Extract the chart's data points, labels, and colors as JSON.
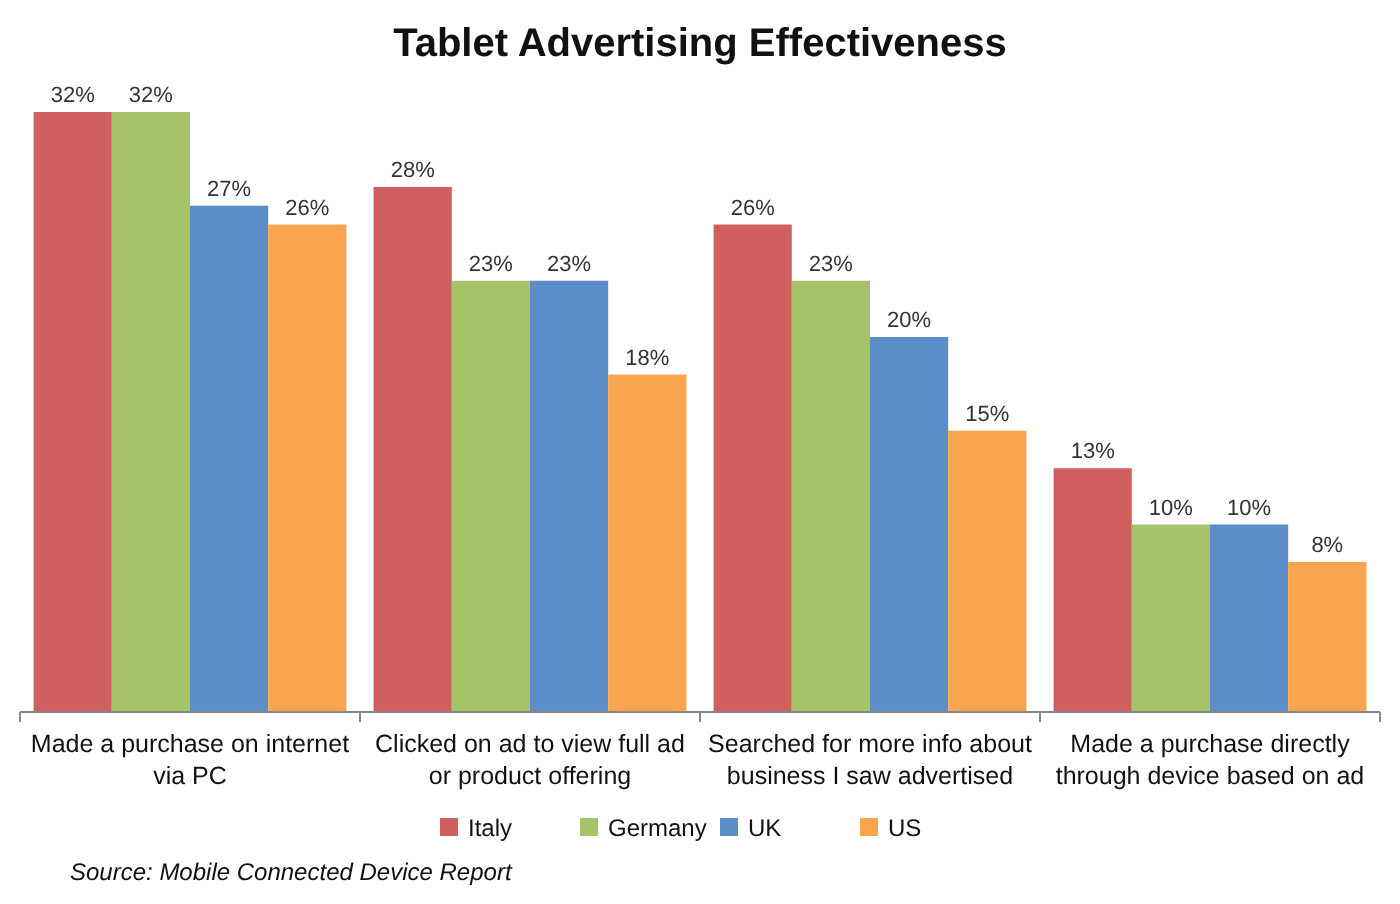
{
  "chart_data": {
    "type": "bar",
    "title": "Tablet Advertising Effectiveness",
    "categories": [
      "Made a purchase on internet via PC",
      "Clicked on ad to view full ad or product offering",
      "Searched for more info about business I saw advertised",
      "Made a purchase directly through device based on ad"
    ],
    "series": [
      {
        "name": "Italy",
        "color": "#d0605e",
        "values": [
          32,
          28,
          26,
          13
        ],
        "value_labels": [
          "32%",
          "28%",
          "26%",
          "13%"
        ]
      },
      {
        "name": "Germany",
        "color": "#a5c46a",
        "values": [
          32,
          23,
          23,
          10
        ],
        "value_labels": [
          "32%",
          "23%",
          "23%",
          "10%"
        ]
      },
      {
        "name": "UK",
        "color": "#5b8dc9",
        "values": [
          27,
          23,
          20,
          10
        ],
        "value_labels": [
          "27%",
          "23%",
          "20%",
          "10%"
        ]
      },
      {
        "name": "US",
        "color": "#f9a54f",
        "values": [
          26,
          18,
          15,
          8
        ],
        "value_labels": [
          "26%",
          "18%",
          "15%",
          "8%"
        ]
      }
    ],
    "legend": "bottom",
    "annotations": [
      "Source: Mobile Connected Device Report"
    ]
  }
}
